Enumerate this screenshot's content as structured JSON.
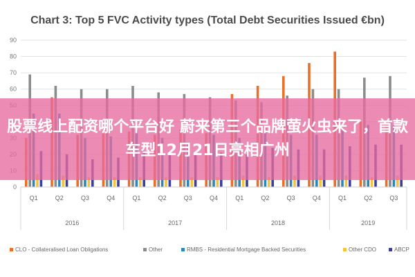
{
  "chart_data": {
    "type": "bar",
    "title": "Chart 3: Top 5 FVC Activity types (Total Debt Securities Issued €bn)",
    "ylim": [
      0,
      90
    ],
    "yticks": [
      0,
      10,
      20,
      30,
      40,
      50,
      60,
      70,
      80,
      90
    ],
    "grid": true,
    "legend_position": "bottom",
    "categories": [
      "Q1",
      "Q2",
      "Q3",
      "Q4",
      "Q1",
      "Q2",
      "Q3",
      "Q4",
      "Q1",
      "Q2",
      "Q3",
      "Q4",
      "Q1",
      "Q2",
      "Q3"
    ],
    "years": [
      {
        "label": "2016",
        "count": 4
      },
      {
        "label": "2017",
        "count": 4
      },
      {
        "label": "2018",
        "count": 4
      },
      {
        "label": "2019",
        "count": 3
      }
    ],
    "series": [
      {
        "name": "CLO - Collateralised Loan Obligations",
        "color": "#E8702A",
        "values": [
          30,
          55,
          32,
          33,
          34,
          32,
          35,
          33,
          57,
          62,
          68,
          76,
          83,
          40,
          38
        ]
      },
      {
        "name": "Other",
        "color": "#8C8C8C",
        "values": [
          69,
          62,
          60,
          60,
          62,
          58,
          57,
          55,
          53,
          52,
          56,
          60,
          60,
          67,
          68
        ]
      },
      {
        "name": "RMBS - Residential Mortgage Backed Securities",
        "color": "#2E86B8",
        "values": [
          45,
          45,
          30,
          31,
          35,
          30,
          27,
          32,
          30,
          37,
          32,
          32,
          36,
          38,
          38
        ]
      },
      {
        "name": "Other CDO",
        "color": "#F5C242",
        "values": [
          8,
          7,
          6,
          6,
          6,
          6,
          6,
          6,
          7,
          6,
          7,
          7,
          7,
          6,
          7
        ]
      },
      {
        "name": "ABCP",
        "color": "#3B3F9A",
        "values": [
          22,
          20,
          17,
          18,
          22,
          22,
          20,
          21,
          20,
          24,
          23,
          23,
          25,
          26,
          26
        ]
      }
    ]
  },
  "overlay": {
    "text": "股票线上配资哪个平台好 蔚来第三个品牌萤火虫来了，首款车型12月21日亮相广州"
  }
}
